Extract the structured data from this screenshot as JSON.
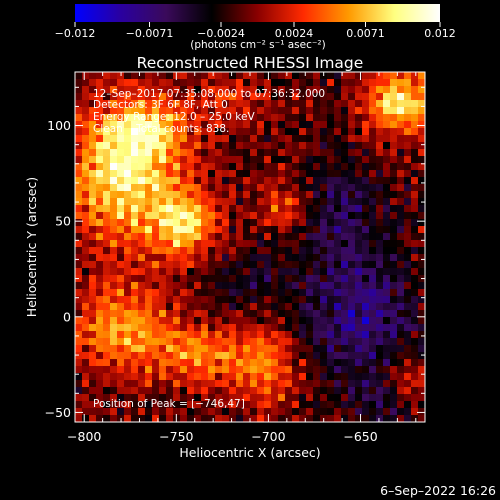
{
  "chart_data": {
    "type": "heatmap",
    "title": "Reconstructed RHESSI Image",
    "xlabel": "Heliocentric X (arcsec)",
    "ylabel": "Heliocentric Y (arcsec)",
    "xlim": [
      -805,
      -615
    ],
    "ylim": [
      -55,
      128
    ],
    "xticks": [
      -800,
      -750,
      -700,
      -650
    ],
    "xtick_labels": [
      "−800",
      "−750",
      "−700",
      "−650"
    ],
    "yticks": [
      -50,
      0,
      50,
      100
    ],
    "ytick_labels": [
      "−50",
      "0",
      "50",
      "100"
    ],
    "colorbar": {
      "range": [
        -0.012,
        0.012
      ],
      "ticks": [
        -0.012,
        -0.0071,
        -0.0024,
        0.0024,
        0.0071,
        0.012
      ],
      "tick_labels": [
        "−0.012",
        "−0.0071",
        "−0.0024",
        "0.0024",
        "0.0071",
        "0.012"
      ],
      "unit_label": "(photons cm⁻² s⁻¹ asec⁻²)",
      "colormap": [
        "#0000ff",
        "#2a00a0",
        "#3a0a5a",
        "#000000",
        "#8a0000",
        "#ff2a00",
        "#ff9a00",
        "#ffff80",
        "#ffffff"
      ]
    },
    "annotations": {
      "time": "12–Sep–2017 07:35:08.000 to 07:36:32.000",
      "detectors": "Detectors: 3F 6F 8F, Att 0",
      "energy": "Energy Range: 12.0 – 25.0 keV",
      "clean": "Clean    Total counts: 838.",
      "peak": "Position of Peak = [−746,47]"
    },
    "sources": [
      {
        "x": -778,
        "y": 75,
        "sx": 22,
        "sy": 25,
        "amp": 0.0105
      },
      {
        "x": -745,
        "y": 48,
        "sx": 12,
        "sy": 12,
        "amp": 0.0085
      },
      {
        "x": -765,
        "y": 98,
        "sx": 14,
        "sy": 10,
        "amp": 0.006
      },
      {
        "x": -780,
        "y": -5,
        "sx": 18,
        "sy": 16,
        "amp": 0.0075
      },
      {
        "x": -735,
        "y": -20,
        "sx": 20,
        "sy": 12,
        "amp": 0.006
      },
      {
        "x": -700,
        "y": -25,
        "sx": 12,
        "sy": 15,
        "amp": 0.0055
      },
      {
        "x": -628,
        "y": 112,
        "sx": 14,
        "sy": 12,
        "amp": 0.0095
      },
      {
        "x": -692,
        "y": 57,
        "sx": 8,
        "sy": 8,
        "amp": 0.0055
      },
      {
        "x": -720,
        "y": 112,
        "sx": 14,
        "sy": 10,
        "amp": 0.0035
      },
      {
        "x": -625,
        "y": -35,
        "sx": 9,
        "sy": 9,
        "amp": 0.004
      },
      {
        "x": -650,
        "y": 0,
        "sx": 22,
        "sy": 22,
        "amp": -0.006
      },
      {
        "x": -660,
        "y": 55,
        "sx": 16,
        "sy": 20,
        "amp": -0.004
      },
      {
        "x": -640,
        "y": -45,
        "sx": 12,
        "sy": 10,
        "amp": -0.0035
      },
      {
        "x": -708,
        "y": 18,
        "sx": 14,
        "sy": 14,
        "amp": -0.0025
      }
    ],
    "grid": false
  },
  "footer": {
    "date": "6–Sep–2022 16:26"
  }
}
